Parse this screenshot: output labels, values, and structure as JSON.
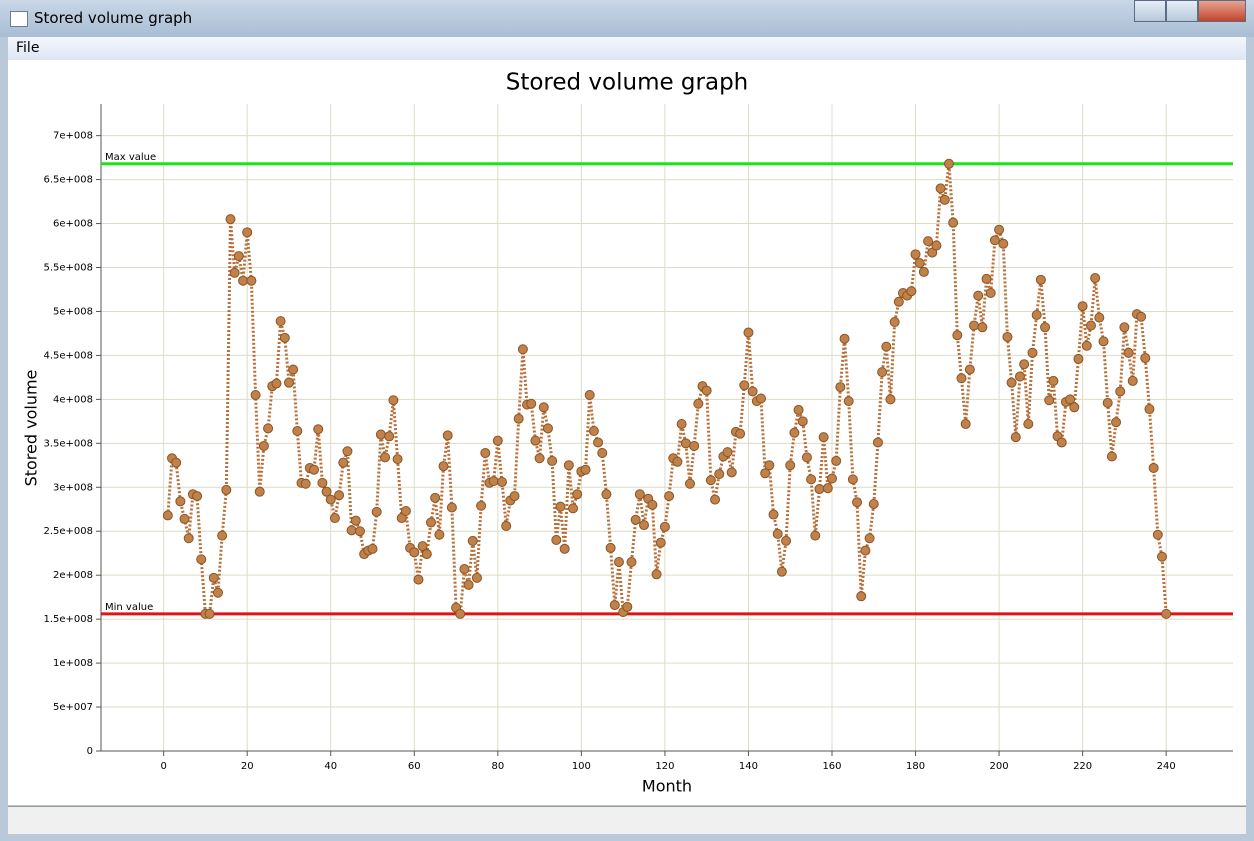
{
  "window": {
    "title": "Stored volume graph",
    "menu": [
      "File"
    ]
  },
  "chart_data": {
    "type": "line",
    "title": "Stored volume graph",
    "x_label": "Month",
    "y_label": "Stored volume",
    "x": [
      1,
      2,
      3,
      4,
      5,
      6,
      7,
      8,
      9,
      10,
      11,
      12,
      13,
      14,
      15,
      16,
      17,
      18,
      19,
      20,
      21,
      22,
      23,
      24,
      25,
      26,
      27,
      28,
      29,
      30,
      31,
      32,
      33,
      34,
      35,
      36,
      37,
      38,
      39,
      40,
      41,
      42,
      43,
      44,
      45,
      46,
      47,
      48,
      49,
      50,
      51,
      52,
      53,
      54,
      55,
      56,
      57,
      58,
      59,
      60,
      61,
      62,
      63,
      64,
      65,
      66,
      67,
      68,
      69,
      70,
      71,
      72,
      73,
      74,
      75,
      76,
      77,
      78,
      79,
      80,
      81,
      82,
      83,
      84,
      85,
      86,
      87,
      88,
      89,
      90,
      91,
      92,
      93,
      94,
      95,
      96,
      97,
      98,
      99,
      100,
      101,
      102,
      103,
      104,
      105,
      106,
      107,
      108,
      109,
      110,
      111,
      112,
      113,
      114,
      115,
      116,
      117,
      118,
      119,
      120,
      121,
      122,
      123,
      124,
      125,
      126,
      127,
      128,
      129,
      130,
      131,
      132,
      133,
      134,
      135,
      136,
      137,
      138,
      139,
      140,
      141,
      142,
      143,
      144,
      145,
      146,
      147,
      148,
      149,
      150,
      151,
      152,
      153,
      154,
      155,
      156,
      157,
      158,
      159,
      160,
      161,
      162,
      163,
      164,
      165,
      166,
      167,
      168,
      169,
      170,
      171,
      172,
      173,
      174,
      175,
      176,
      177,
      178,
      179,
      180,
      181,
      182,
      183,
      184,
      185,
      186,
      187,
      188,
      189,
      190,
      191,
      192,
      193,
      194,
      195,
      196,
      197,
      198,
      199,
      200,
      201,
      202,
      203,
      204,
      205,
      206,
      207,
      208,
      209,
      210,
      211,
      212,
      213,
      214,
      215,
      216,
      217,
      218,
      219,
      220,
      221,
      222,
      223,
      224,
      225,
      226,
      227,
      228,
      229,
      230,
      231,
      232,
      233,
      234,
      235,
      236,
      237,
      238,
      239,
      240
    ],
    "series": [
      {
        "color": "#c0824a",
        "line_color": "#b8703a",
        "values": [
          268000000.0,
          333000000.0,
          328000000.0,
          284000000.0,
          264000000.0,
          242000000.0,
          292000000.0,
          290000000.0,
          218000000.0,
          156000000.0,
          156000000.0,
          197000000.0,
          180000000.0,
          245000000.0,
          297000000.0,
          605000000.0,
          544000000.0,
          563000000.0,
          535000000.0,
          590000000.0,
          535000000.0,
          405000000.0,
          295000000.0,
          347000000.0,
          367000000.0,
          415000000.0,
          418000000.0,
          489000000.0,
          470000000.0,
          419000000.0,
          434000000.0,
          364000000.0,
          305000000.0,
          304000000.0,
          322000000.0,
          320000000.0,
          366000000.0,
          305000000.0,
          295000000.0,
          286000000.0,
          265000000.0,
          291000000.0,
          328000000.0,
          341000000.0,
          251000000.0,
          262000000.0,
          250000000.0,
          224000000.0,
          228000000.0,
          230000000.0,
          272000000.0,
          360000000.0,
          334000000.0,
          358000000.0,
          399000000.0,
          332000000.0,
          265000000.0,
          273000000.0,
          231000000.0,
          226000000.0,
          195000000.0,
          233000000.0,
          224000000.0,
          260000000.0,
          288000000.0,
          246000000.0,
          324000000.0,
          359000000.0,
          277000000.0,
          163000000.0,
          156000000.0,
          207000000.0,
          189000000.0,
          239000000.0,
          197000000.0,
          279000000.0,
          339000000.0,
          305000000.0,
          307000000.0,
          353000000.0,
          306000000.0,
          256000000.0,
          285000000.0,
          290000000.0,
          378000000.0,
          457000000.0,
          394000000.0,
          395000000.0,
          353000000.0,
          333000000.0,
          391000000.0,
          367000000.0,
          330000000.0,
          240000000.0,
          278000000.0,
          230000000.0,
          325000000.0,
          276000000.0,
          292000000.0,
          318000000.0,
          320000000.0,
          405000000.0,
          364000000.0,
          351000000.0,
          339000000.0,
          292000000.0,
          231000000.0,
          166000000.0,
          215000000.0,
          158000000.0,
          164000000.0,
          215000000.0,
          263000000.0,
          292000000.0,
          257000000.0,
          287000000.0,
          280000000.0,
          201000000.0,
          237000000.0,
          255000000.0,
          290000000.0,
          333000000.0,
          329000000.0,
          372000000.0,
          350000000.0,
          304000000.0,
          347000000.0,
          395000000.0,
          415000000.0,
          410000000.0,
          308000000.0,
          286000000.0,
          315000000.0,
          335000000.0,
          340000000.0,
          317000000.0,
          363000000.0,
          361000000.0,
          416000000.0,
          476000000.0,
          409000000.0,
          398000000.0,
          401000000.0,
          316000000.0,
          325000000.0,
          269000000.0,
          247000000.0,
          204000000.0,
          239000000.0,
          325000000.0,
          362000000.0,
          388000000.0,
          375000000.0,
          334000000.0,
          309000000.0,
          245000000.0,
          298000000.0,
          357000000.0,
          299000000.0,
          310000000.0,
          330000000.0,
          414000000.0,
          469000000.0,
          398000000.0,
          309000000.0,
          283000000.0,
          176000000.0,
          228000000.0,
          242000000.0,
          281000000.0,
          351000000.0,
          431000000.0,
          460000000.0,
          400000000.0,
          488000000.0,
          511000000.0,
          521000000.0,
          518000000.0,
          523000000.0,
          565000000.0,
          555000000.0,
          545000000.0,
          580000000.0,
          567000000.0,
          575000000.0,
          640000000.0,
          627000000.0,
          668000000.0,
          601000000.0,
          473000000.0,
          424000000.0,
          372000000.0,
          434000000.0,
          484000000.0,
          518000000.0,
          482000000.0,
          537000000.0,
          521000000.0,
          581000000.0,
          593000000.0,
          577000000.0,
          471000000.0,
          419000000.0,
          357000000.0,
          426000000.0,
          440000000.0,
          372000000.0,
          453000000.0,
          496000000.0,
          536000000.0,
          482000000.0,
          399000000.0,
          421000000.0,
          358000000.0,
          351000000.0,
          397000000.0,
          400000000.0,
          391000000.0,
          446000000.0,
          506000000.0,
          461000000.0,
          484000000.0,
          538000000.0,
          493000000.0,
          466000000.0,
          396000000.0,
          335000000.0,
          374000000.0,
          409000000.0,
          482000000.0,
          453000000.0,
          421000000.0,
          497000000.0,
          494000000.0,
          447000000.0,
          389000000.0,
          322000000.0,
          246000000.0,
          221000000.0,
          156000000.0
        ]
      }
    ],
    "reference_lines": [
      {
        "label": "Max value",
        "value": 668000000.0,
        "color": "#19e619"
      },
      {
        "label": "Min value",
        "value": 156000000.0,
        "color": "#e01414"
      }
    ],
    "xlim": [
      -15,
      256
    ],
    "xticks": [
      0,
      20,
      40,
      60,
      80,
      100,
      120,
      140,
      160,
      180,
      200,
      220,
      240
    ],
    "ylim": [
      0,
      736000000.0
    ],
    "yticks": [
      0,
      {
        "value": 50000000,
        "label": "5e+007"
      },
      {
        "value": 100000000,
        "label": "1e+008"
      },
      {
        "value": 150000000,
        "label": "1.5e+008"
      },
      {
        "value": 200000000,
        "label": "2e+008"
      },
      {
        "value": 250000000,
        "label": "2.5e+008"
      },
      {
        "value": 300000000,
        "label": "3e+008"
      },
      {
        "value": 350000000,
        "label": "3.5e+008"
      },
      {
        "value": 400000000,
        "label": "4e+008"
      },
      {
        "value": 450000000,
        "label": "4.5e+008"
      },
      {
        "value": 500000000,
        "label": "5e+008"
      },
      {
        "value": 550000000,
        "label": "5.5e+008"
      },
      {
        "value": 600000000,
        "label": "6e+008"
      },
      {
        "value": 650000000,
        "label": "6.5e+008"
      },
      {
        "value": 700000000,
        "label": "7e+008"
      }
    ],
    "grid": true
  }
}
